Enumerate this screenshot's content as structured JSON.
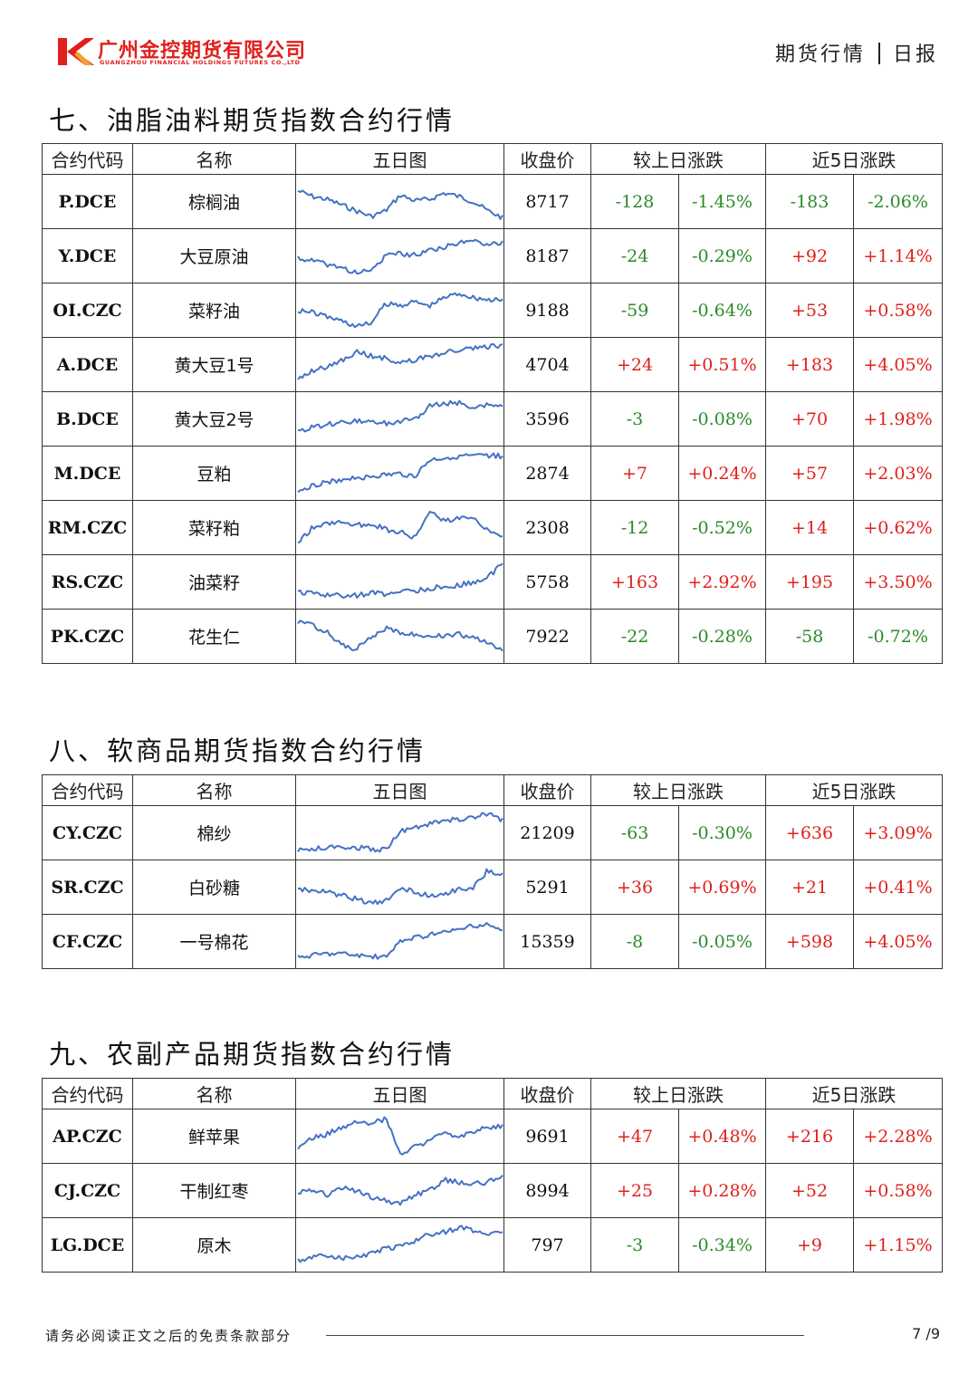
{
  "header": {
    "company_cn": "广州金控期货有限公司",
    "company_en": "GUANGZHOU FINANCIAL HOLDINGS FUTURES CO.,LTD",
    "doc_category": "期货行情",
    "doc_type": "日报",
    "brand_color": "#e0201c"
  },
  "columns": {
    "code": "合约代码",
    "name": "名称",
    "chart": "五日图",
    "close": "收盘价",
    "day_change": "较上日涨跌",
    "five_day_change": "近5日涨跌"
  },
  "colors": {
    "up": "#e0201c",
    "down": "#2a8a2a",
    "line": "#4472c4"
  },
  "sections": [
    {
      "title": "七、油脂油料期货指数合约行情",
      "rows": [
        {
          "code": "P.DCE",
          "name": "棕榈油",
          "close": "8717",
          "chg": "-128",
          "pct": "-1.45%",
          "chg5": "-183",
          "pct5": "-2.06%",
          "trend": [
            0.25,
            0.38,
            0.45,
            0.58,
            0.72,
            0.85,
            0.72,
            0.35,
            0.48,
            0.45,
            0.3,
            0.38,
            0.5,
            0.72,
            0.88
          ]
        },
        {
          "code": "Y.DCE",
          "name": "大豆原油",
          "close": "8187",
          "chg": "-24",
          "pct": "-0.29%",
          "chg5": "+92",
          "pct5": "+1.14%",
          "trend": [
            0.55,
            0.62,
            0.7,
            0.78,
            0.9,
            0.85,
            0.5,
            0.45,
            0.48,
            0.35,
            0.3,
            0.2,
            0.15,
            0.22,
            0.2
          ]
        },
        {
          "code": "OI.CZC",
          "name": "菜籽油",
          "close": "9188",
          "chg": "-59",
          "pct": "-0.64%",
          "chg5": "+53",
          "pct5": "+0.58%",
          "trend": [
            0.5,
            0.55,
            0.65,
            0.75,
            0.88,
            0.8,
            0.35,
            0.38,
            0.3,
            0.4,
            0.2,
            0.1,
            0.2,
            0.25,
            0.28
          ]
        },
        {
          "code": "A.DCE",
          "name": "黄大豆1号",
          "close": "4704",
          "chg": "+24",
          "pct": "+0.51%",
          "chg5": "+183",
          "pct5": "+4.05%",
          "trend": [
            0.85,
            0.65,
            0.55,
            0.4,
            0.2,
            0.3,
            0.35,
            0.45,
            0.4,
            0.3,
            0.22,
            0.15,
            0.12,
            0.08,
            0.05
          ]
        },
        {
          "code": "B.DCE",
          "name": "黄大豆2号",
          "close": "3596",
          "chg": "-3",
          "pct": "-0.08%",
          "chg5": "+70",
          "pct5": "+1.98%",
          "trend": [
            0.8,
            0.7,
            0.62,
            0.6,
            0.55,
            0.58,
            0.6,
            0.55,
            0.5,
            0.2,
            0.15,
            0.12,
            0.25,
            0.18,
            0.22
          ]
        },
        {
          "code": "M.DCE",
          "name": "豆粕",
          "close": "2874",
          "chg": "+7",
          "pct": "+0.24%",
          "chg5": "+57",
          "pct5": "+2.03%",
          "trend": [
            0.9,
            0.8,
            0.7,
            0.65,
            0.6,
            0.58,
            0.55,
            0.52,
            0.58,
            0.2,
            0.15,
            0.1,
            0.12,
            0.08,
            0.1
          ]
        },
        {
          "code": "RM.CZC",
          "name": "菜籽粕",
          "close": "2308",
          "chg": "-12",
          "pct": "-0.52%",
          "chg5": "+14",
          "pct5": "+0.62%",
          "trend": [
            0.85,
            0.5,
            0.4,
            0.35,
            0.45,
            0.4,
            0.55,
            0.6,
            0.75,
            0.15,
            0.35,
            0.3,
            0.25,
            0.55,
            0.7
          ]
        },
        {
          "code": "RS.CZC",
          "name": "油菜籽",
          "close": "5758",
          "chg": "+163",
          "pct": "+2.92%",
          "chg5": "+195",
          "pct5": "+3.50%",
          "trend": [
            0.75,
            0.78,
            0.8,
            0.82,
            0.82,
            0.76,
            0.78,
            0.72,
            0.7,
            0.65,
            0.62,
            0.58,
            0.5,
            0.4,
            0.05
          ]
        },
        {
          "code": "PK.CZC",
          "name": "花生仁",
          "close": "7922",
          "chg": "-22",
          "pct": "-0.28%",
          "chg5": "-58",
          "pct5": "-0.72%",
          "trend": [
            0.15,
            0.25,
            0.4,
            0.7,
            0.8,
            0.55,
            0.3,
            0.4,
            0.45,
            0.5,
            0.48,
            0.45,
            0.55,
            0.65,
            0.82
          ]
        }
      ]
    },
    {
      "title": "八、软商品期货指数合约行情",
      "rows": [
        {
          "code": "CY.CZC",
          "name": "棉纱",
          "close": "21209",
          "chg": "-63",
          "pct": "-0.30%",
          "chg5": "+636",
          "pct5": "+3.09%",
          "trend": [
            0.92,
            0.88,
            0.85,
            0.82,
            0.85,
            0.88,
            0.9,
            0.45,
            0.38,
            0.3,
            0.22,
            0.18,
            0.15,
            0.05,
            0.2
          ]
        },
        {
          "code": "SR.CZC",
          "name": "白砂糖",
          "close": "5291",
          "chg": "+36",
          "pct": "+0.69%",
          "chg5": "+21",
          "pct5": "+0.41%",
          "trend": [
            0.55,
            0.58,
            0.62,
            0.7,
            0.78,
            0.88,
            0.85,
            0.5,
            0.62,
            0.7,
            0.65,
            0.55,
            0.5,
            0.1,
            0.2
          ]
        },
        {
          "code": "CF.CZC",
          "name": "一号棉花",
          "close": "15359",
          "chg": "-8",
          "pct": "-0.05%",
          "chg5": "+598",
          "pct5": "+4.05%",
          "trend": [
            0.88,
            0.82,
            0.78,
            0.78,
            0.82,
            0.85,
            0.88,
            0.5,
            0.4,
            0.35,
            0.28,
            0.22,
            0.15,
            0.1,
            0.25
          ]
        }
      ]
    },
    {
      "title": "九、农副产品期货指数合约行情",
      "rows": [
        {
          "code": "AP.CZC",
          "name": "鲜苹果",
          "close": "9691",
          "chg": "+47",
          "pct": "+0.48%",
          "chg5": "+216",
          "pct5": "+2.28%",
          "trend": [
            0.75,
            0.55,
            0.45,
            0.3,
            0.15,
            0.2,
            0.1,
            0.9,
            0.75,
            0.6,
            0.45,
            0.5,
            0.4,
            0.3,
            0.25
          ]
        },
        {
          "code": "CJ.CZC",
          "name": "干制红枣",
          "close": "8994",
          "chg": "+25",
          "pct": "+0.28%",
          "chg5": "+52",
          "pct5": "+0.58%",
          "trend": [
            0.55,
            0.5,
            0.6,
            0.45,
            0.5,
            0.65,
            0.75,
            0.8,
            0.6,
            0.5,
            0.25,
            0.3,
            0.35,
            0.3,
            0.15
          ]
        },
        {
          "code": "LG.DCE",
          "name": "原木",
          "close": "797",
          "chg": "-3",
          "pct": "-0.34%",
          "chg5": "+9",
          "pct5": "+1.15%",
          "trend": [
            0.85,
            0.8,
            0.75,
            0.82,
            0.78,
            0.7,
            0.6,
            0.55,
            0.4,
            0.25,
            0.2,
            0.1,
            0.15,
            0.25,
            0.2
          ]
        }
      ]
    }
  ],
  "footer": {
    "disclaimer": "请务必阅读正文之后的免责条款部分",
    "page": "7 /9"
  }
}
